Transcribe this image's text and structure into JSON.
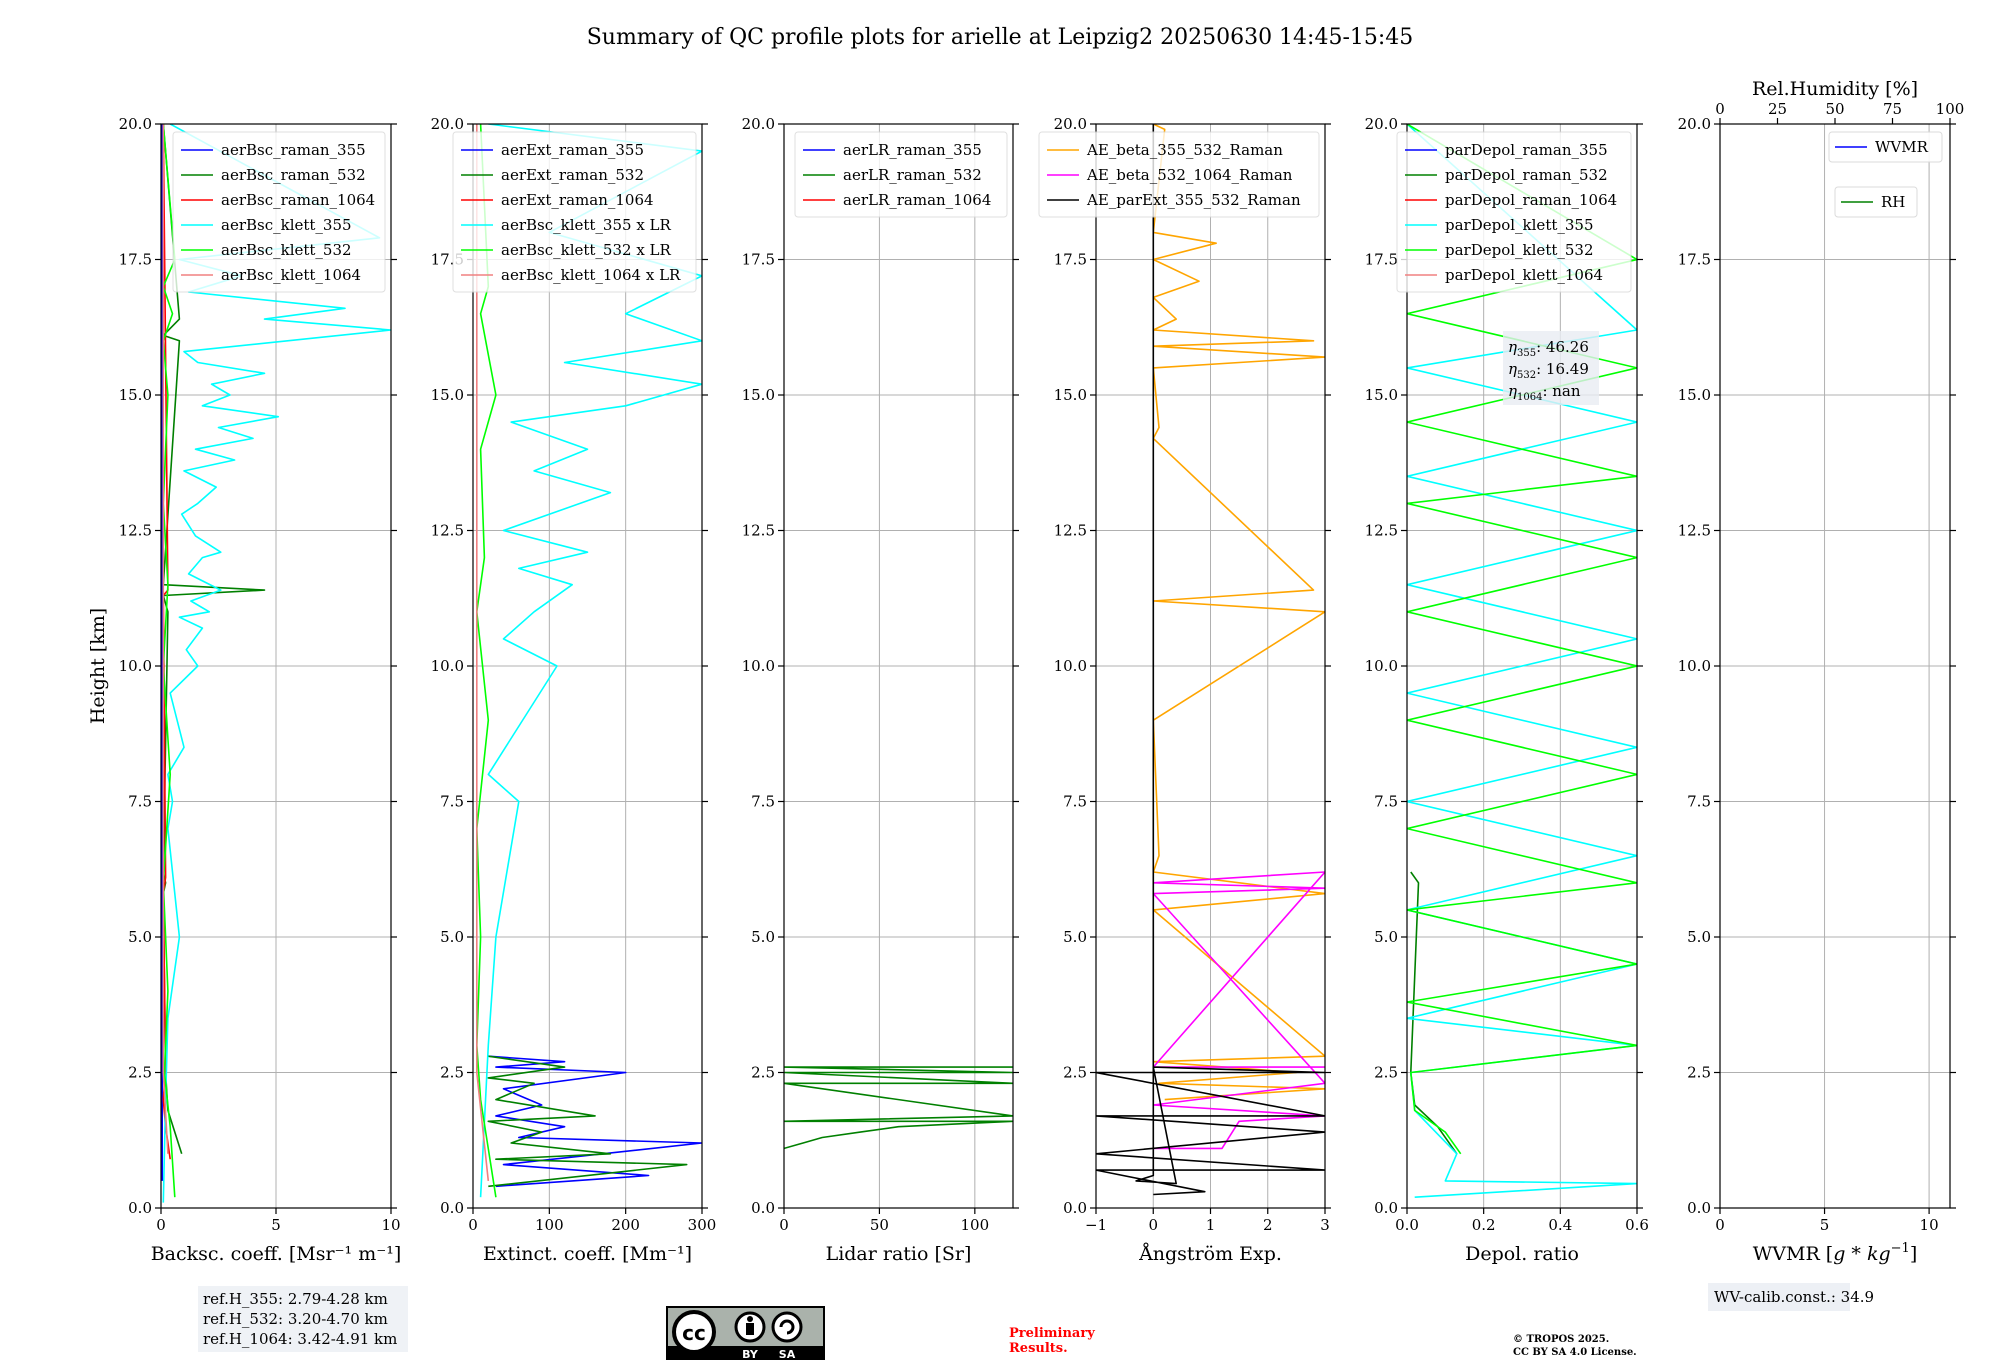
{
  "title": "Summary of QC profile plots for arielle at Leipzig2 20250630 14:45-15:45",
  "colors": {
    "blue": "#0000ff",
    "darkgreen": "#008000",
    "red": "#ff0000",
    "cyan": "#00ffff",
    "lime": "#00ff00",
    "pink": "#f08080",
    "orange": "#ffa500",
    "magenta": "#ff00ff",
    "black": "#000000"
  },
  "chart_data": [
    {
      "type": "line",
      "id": "bsc",
      "xlabel": "Backsc. coeff. [Msr⁻¹ m⁻¹]",
      "ylabel": "Height [km]",
      "xlim": [
        0,
        10
      ],
      "ylim": [
        0,
        20
      ],
      "xticks": [
        0,
        5,
        10
      ],
      "xticklabels": [
        "0",
        "5",
        "10"
      ],
      "yticks": [
        0,
        2.5,
        5,
        7.5,
        10,
        12.5,
        15,
        17.5,
        20
      ],
      "yticklabels": [
        "0.0",
        "2.5",
        "5.0",
        "7.5",
        "10.0",
        "12.5",
        "15.0",
        "17.5",
        "20.0"
      ],
      "grid": true,
      "legend": "top-right",
      "series": [
        {
          "name": "aerBsc_raman_355",
          "color": "#0000ff",
          "x": [
            0.05,
            0.05
          ],
          "y": [
            0.5,
            20
          ]
        },
        {
          "name": "aerBsc_raman_532",
          "color": "#008000",
          "x": [
            0.9,
            0.6,
            0.3,
            0.2,
            0.1,
            0.2,
            0.1,
            0.3,
            0.1,
            4.5,
            0.1,
            0.8,
            0.1,
            0.8,
            0.1
          ],
          "y": [
            1.0,
            1.4,
            1.8,
            2.5,
            5.8,
            6.0,
            6.2,
            11.0,
            11.3,
            11.4,
            11.5,
            16.0,
            16.1,
            16.4,
            20
          ]
        },
        {
          "name": "aerBsc_raman_1064",
          "color": "#ff0000",
          "x": [
            0.4,
            0.2,
            0.1,
            0.2,
            0.1,
            0.2,
            0.1,
            0.3,
            0.1
          ],
          "y": [
            0.9,
            1.5,
            2.0,
            2.6,
            5.8,
            6.1,
            11.3,
            11.4,
            20
          ]
        },
        {
          "name": "aerBsc_klett_355",
          "color": "#00ffff",
          "x": [
            0.1,
            0.2,
            0.3,
            0.8,
            0.3,
            0.5,
            0.3,
            1.0,
            0.4,
            1.6,
            1.1,
            1.8,
            0.8,
            2.1,
            1.3,
            2.6,
            1.2,
            1.8,
            2.6,
            1.5,
            0.9,
            1.6,
            2.4,
            1.0,
            3.2,
            1.5,
            4.0,
            2.5,
            5.1,
            1.8,
            3.0,
            2.2,
            4.5,
            1.6,
            1.0,
            5.5,
            10.0,
            4.5,
            8.0,
            1.2,
            3.5,
            0.8,
            9.5,
            0.4
          ],
          "y": [
            0.1,
            2.0,
            3.5,
            5.0,
            7.0,
            7.5,
            8.0,
            8.5,
            9.5,
            10.0,
            10.3,
            10.7,
            10.9,
            11.0,
            11.2,
            11.4,
            11.7,
            12.0,
            12.1,
            12.4,
            12.8,
            13.0,
            13.3,
            13.6,
            13.8,
            14.0,
            14.2,
            14.4,
            14.6,
            14.8,
            15.0,
            15.2,
            15.4,
            15.6,
            15.8,
            16.0,
            16.2,
            16.4,
            16.6,
            16.9,
            17.2,
            17.5,
            17.9,
            20
          ]
        },
        {
          "name": "aerBsc_klett_532",
          "color": "#00ff00",
          "x": [
            0.6,
            0.4,
            0.15,
            0.3,
            0.1,
            0.4,
            0.1,
            0.3,
            0.1,
            0.3,
            0.1,
            0.5,
            0.1,
            0.6,
            0.1
          ],
          "y": [
            0.2,
            1.5,
            2.5,
            4.0,
            6.0,
            8.0,
            10.0,
            11.5,
            13.0,
            15.0,
            16.0,
            16.5,
            17.0,
            17.5,
            20
          ]
        },
        {
          "name": "aerBsc_klett_1064",
          "color": "#f08080",
          "x": [
            0.3,
            0.1,
            0.1
          ],
          "y": [
            1.0,
            2.5,
            20
          ]
        }
      ],
      "annotation": [
        "ref.H_355: 2.79-4.28 km",
        "ref.H_532: 3.20-4.70 km",
        "ref.H_1064: 3.42-4.91 km"
      ]
    },
    {
      "type": "line",
      "id": "ext",
      "xlabel": "Extinct. coeff. [Mm⁻¹]",
      "xlim": [
        0,
        300
      ],
      "ylim": [
        0,
        20
      ],
      "xticks": [
        0,
        100,
        200,
        300
      ],
      "xticklabels": [
        "0",
        "100",
        "200",
        "300"
      ],
      "yticks": [
        0,
        2.5,
        5,
        7.5,
        10,
        12.5,
        15,
        17.5,
        20
      ],
      "yticklabels": [
        "0.0",
        "2.5",
        "5.0",
        "7.5",
        "10.0",
        "12.5",
        "15.0",
        "17.5",
        "20.0"
      ],
      "grid": true,
      "legend": "top-right",
      "series": [
        {
          "name": "aerExt_raman_355",
          "color": "#0000ff",
          "x": [
            30,
            230,
            40,
            300,
            60,
            120,
            30,
            90,
            40,
            200,
            30,
            120,
            20
          ],
          "y": [
            0.4,
            0.6,
            0.8,
            1.2,
            1.3,
            1.5,
            1.7,
            1.9,
            2.2,
            2.5,
            2.6,
            2.7,
            2.8
          ]
        },
        {
          "name": "aerExt_raman_532",
          "color": "#008000",
          "x": [
            20,
            280,
            30,
            180,
            50,
            90,
            20,
            160,
            30,
            80,
            20,
            120,
            20
          ],
          "y": [
            0.4,
            0.8,
            0.9,
            1.0,
            1.2,
            1.4,
            1.6,
            1.7,
            2.0,
            2.3,
            2.4,
            2.6,
            2.8
          ]
        },
        {
          "name": "aerExt_raman_1064",
          "color": "#ff0000",
          "x": [],
          "y": []
        },
        {
          "name": "aerBsc_klett_355 x LR",
          "color": "#00ffff",
          "x": [
            10,
            20,
            30,
            60,
            20,
            110,
            40,
            80,
            130,
            60,
            150,
            40,
            180,
            80,
            150,
            50,
            200,
            300,
            120,
            300,
            200,
            300,
            100,
            300,
            20
          ],
          "y": [
            0.2,
            3.0,
            5.0,
            7.5,
            8.0,
            10.0,
            10.5,
            11.0,
            11.5,
            11.8,
            12.1,
            12.5,
            13.2,
            13.6,
            14.0,
            14.5,
            14.8,
            15.2,
            15.6,
            16.0,
            16.5,
            17.2,
            18.0,
            19.5,
            20
          ]
        },
        {
          "name": "aerBsc_klett_532 x LR",
          "color": "#00ff00",
          "x": [
            30,
            10,
            5,
            10,
            5,
            20,
            5,
            15,
            10,
            30,
            10,
            20,
            10
          ],
          "y": [
            0.2,
            2.0,
            3.0,
            5.0,
            7.0,
            9.0,
            11.0,
            12.0,
            14.0,
            15.0,
            16.5,
            17.0,
            20
          ]
        },
        {
          "name": "aerBsc_klett_1064 x LR",
          "color": "#f08080",
          "x": [
            20,
            5,
            5
          ],
          "y": [
            0.5,
            2.5,
            20
          ]
        }
      ]
    },
    {
      "type": "line",
      "id": "lr",
      "xlabel": "Lidar ratio [Sr]",
      "xlim": [
        0,
        120
      ],
      "ylim": [
        0,
        20
      ],
      "xticks": [
        0,
        50,
        100
      ],
      "xticklabels": [
        "0",
        "50",
        "100"
      ],
      "yticks": [
        0,
        2.5,
        5,
        7.5,
        10,
        12.5,
        15,
        17.5,
        20
      ],
      "yticklabels": [
        "0.0",
        "2.5",
        "5.0",
        "7.5",
        "10.0",
        "12.5",
        "15.0",
        "17.5",
        "20.0"
      ],
      "grid": true,
      "legend": "top-right",
      "series": [
        {
          "name": "aerLR_raman_355",
          "color": "#0000ff",
          "x": [],
          "y": []
        },
        {
          "name": "aerLR_raman_532",
          "color": "#008000",
          "x": [
            0,
            10,
            20,
            40,
            60,
            120,
            0,
            120,
            0,
            120,
            0,
            120,
            0,
            120
          ],
          "y": [
            1.1,
            1.2,
            1.3,
            1.4,
            1.5,
            1.6,
            1.6,
            1.7,
            2.3,
            2.3,
            2.5,
            2.5,
            2.6,
            2.6
          ]
        },
        {
          "name": "aerLR_raman_1064",
          "color": "#ff0000",
          "x": [],
          "y": []
        }
      ]
    },
    {
      "type": "line",
      "id": "ae",
      "xlabel": "Ångström Exp.",
      "xlim": [
        -1,
        3
      ],
      "ylim": [
        0,
        20
      ],
      "xticks": [
        -1,
        0,
        1,
        2,
        3
      ],
      "xticklabels": [
        "−1",
        "0",
        "1",
        "2",
        "3"
      ],
      "yticks": [
        0,
        2.5,
        5,
        7.5,
        10,
        12.5,
        15,
        17.5,
        20
      ],
      "yticklabels": [
        "0.0",
        "2.5",
        "5.0",
        "7.5",
        "10.0",
        "12.5",
        "15.0",
        "17.5",
        "20.0"
      ],
      "grid": true,
      "legend": "top-right",
      "series": [
        {
          "name": "AE_beta_355_532_Raman",
          "color": "#ffa500",
          "x": [
            0.2,
            3.0,
            0.1,
            2.5,
            0,
            3.0,
            0,
            3.0,
            0,
            0.1,
            0,
            3.0,
            0,
            2.8,
            0,
            0.1,
            0,
            3.0,
            0,
            2.8,
            0,
            0.4,
            0,
            0.8,
            0,
            1.1,
            0,
            0.2,
            0
          ],
          "y": [
            2.0,
            2.2,
            2.3,
            2.5,
            2.7,
            2.8,
            5.5,
            5.8,
            6.2,
            6.5,
            9.0,
            11.0,
            11.2,
            11.4,
            14.2,
            14.4,
            15.5,
            15.7,
            15.9,
            16.0,
            16.2,
            16.4,
            16.8,
            17.1,
            17.5,
            17.8,
            18.0,
            19.9,
            20
          ]
        },
        {
          "name": "AE_beta_532_1064_Raman",
          "color": "#ff00ff",
          "x": [
            0,
            1.2,
            1.5,
            3.0,
            0,
            3.0,
            0,
            3.0,
            0,
            3.0,
            0,
            3.0
          ],
          "y": [
            1.1,
            1.1,
            1.6,
            1.7,
            1.9,
            2.3,
            5.8,
            5.9,
            6.0,
            6.2,
            2.6,
            2.6
          ]
        },
        {
          "name": "AE_parExt_355_532_Raman",
          "color": "#000000",
          "x": [
            0,
            0.9,
            -1,
            3.0,
            -1,
            3.0,
            -1,
            3.0,
            -1,
            3.0,
            0,
            0.4,
            -0.3,
            0,
            0,
            0
          ],
          "y": [
            0.25,
            0.3,
            0.7,
            0.7,
            1.0,
            1.4,
            1.7,
            1.7,
            2.5,
            2.5,
            2.6,
            0.45,
            0.5,
            0.6,
            2.7,
            20
          ]
        }
      ]
    },
    {
      "type": "line",
      "id": "depol",
      "xlabel": "Depol. ratio",
      "xlim": [
        0,
        0.6
      ],
      "ylim": [
        0,
        20
      ],
      "xticks": [
        0,
        0.2,
        0.4,
        0.6
      ],
      "xticklabels": [
        "0.0",
        "0.2",
        "0.4",
        "0.6"
      ],
      "yticks": [
        0,
        2.5,
        5,
        7.5,
        10,
        12.5,
        15,
        17.5,
        20
      ],
      "yticklabels": [
        "0.0",
        "2.5",
        "5.0",
        "7.5",
        "10.0",
        "12.5",
        "15.0",
        "17.5",
        "20.0"
      ],
      "grid": true,
      "legend": "top-right",
      "series": [
        {
          "name": "parDepol_raman_355",
          "color": "#0000ff",
          "x": [],
          "y": []
        },
        {
          "name": "parDepol_raman_532",
          "color": "#008000",
          "x": [
            0.13,
            0.08,
            0.02,
            0.01,
            0.03,
            0.01
          ],
          "y": [
            1.0,
            1.5,
            1.9,
            2.5,
            6.0,
            6.2
          ]
        },
        {
          "name": "parDepol_raman_1064",
          "color": "#ff0000",
          "x": [],
          "y": []
        },
        {
          "name": "parDepol_klett_355",
          "color": "#00ffff",
          "x": [
            0.02,
            0.6,
            0.1,
            0.13,
            0.02,
            0.01,
            0.6,
            0.0,
            0.6,
            0.0,
            0.6,
            0.0,
            0.6,
            0.0,
            0.6,
            0.0,
            0.6,
            0.0,
            0.6,
            0.0,
            0.6,
            0.0
          ],
          "y": [
            0.2,
            0.45,
            0.5,
            1.0,
            1.8,
            2.5,
            3.0,
            3.5,
            4.5,
            5.5,
            6.5,
            7.5,
            8.5,
            9.5,
            10.5,
            11.5,
            12.5,
            13.5,
            14.5,
            15.5,
            16.2,
            20
          ]
        },
        {
          "name": "parDepol_klett_532",
          "color": "#00ff00",
          "x": [
            0.14,
            0.1,
            0.02,
            0.01,
            0.6,
            0.0,
            0.6,
            0.0,
            0.6,
            0.0,
            0.6,
            0.0,
            0.6,
            0.0,
            0.6,
            0.0,
            0.6,
            0.0,
            0.6,
            0.0,
            0.6,
            0.0
          ],
          "y": [
            1.0,
            1.4,
            1.8,
            2.5,
            3.0,
            3.8,
            4.5,
            5.5,
            6.0,
            7.0,
            8.0,
            9.0,
            10.0,
            11.0,
            12.0,
            13.0,
            13.5,
            14.5,
            15.5,
            16.5,
            17.5,
            20
          ]
        },
        {
          "name": "parDepol_klett_1064",
          "color": "#f08080",
          "x": [],
          "y": []
        }
      ],
      "annotation": [
        "η",
        "355",
        ": 46.26",
        "532",
        ": 16.49",
        "1064",
        ": nan"
      ]
    },
    {
      "type": "line",
      "id": "wv",
      "xlabel": "WVMR [",
      "xlabel_unit": "g * kg",
      "xlabel_exp": "−1",
      "xlabel_end": "]",
      "toplabel": "Rel.Humidity [%]",
      "xlim": [
        0,
        11
      ],
      "ylim": [
        0,
        20
      ],
      "xticks": [
        0,
        5,
        10
      ],
      "xticklabels": [
        "0",
        "5",
        "10"
      ],
      "topticks": [
        0,
        25,
        50,
        75,
        100
      ],
      "toplim": [
        0,
        100
      ],
      "yticks": [
        0,
        2.5,
        5,
        7.5,
        10,
        12.5,
        15,
        17.5,
        20
      ],
      "yticklabels": [
        "0.0",
        "2.5",
        "5.0",
        "7.5",
        "10.0",
        "12.5",
        "15.0",
        "17.5",
        "20.0"
      ],
      "grid": true,
      "legend": "top-right",
      "series": [
        {
          "name": "WVMR",
          "color": "#0000ff",
          "x": [],
          "y": []
        },
        {
          "name": "RH",
          "color": "#008000",
          "x": [],
          "y": []
        }
      ],
      "annotation": [
        "WV-calib.const.: 34.9"
      ]
    }
  ],
  "footer": {
    "cc_top": "cc",
    "cc_by": "BY",
    "cc_sa": "SA",
    "preliminary": [
      "Preliminary",
      "Results."
    ],
    "copyright": [
      "© TROPOS 2025.",
      "CC BY SA 4.0 License."
    ]
  }
}
